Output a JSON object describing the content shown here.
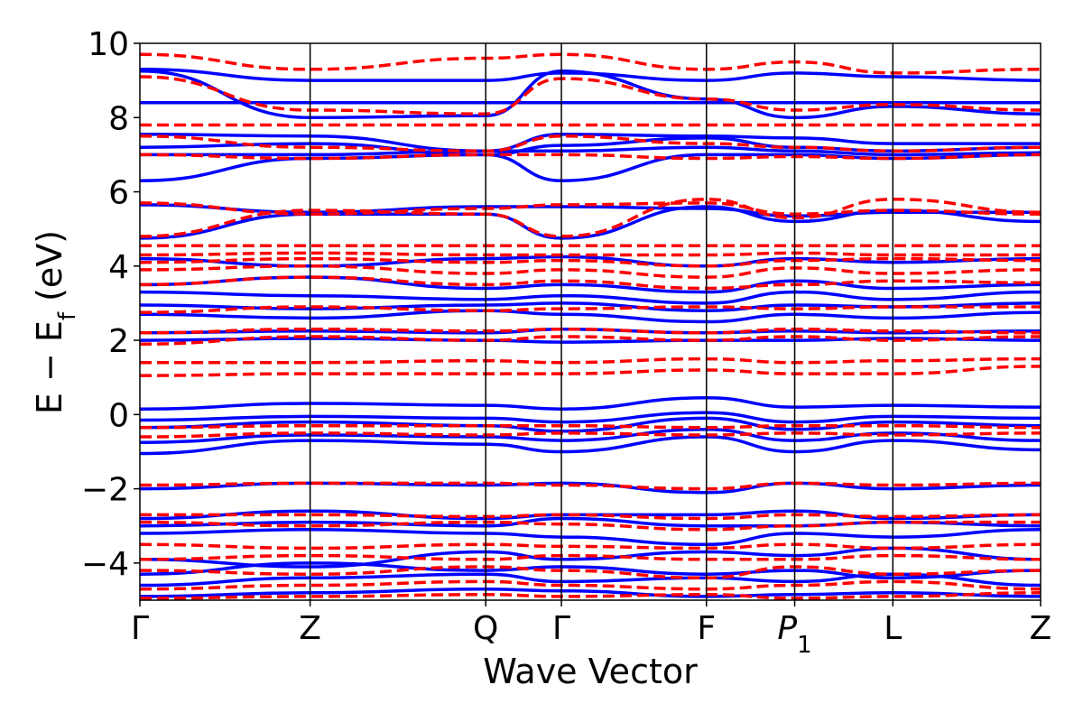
{
  "chart_data": {
    "type": "line",
    "xlabel": "Wave Vector",
    "ylabel_parts": {
      "main": "E − E",
      "subscript": "f",
      "unit": " (eV)"
    },
    "ylim": [
      -5,
      10
    ],
    "yticks": [
      {
        "value": 10,
        "label": "10"
      },
      {
        "value": 8,
        "label": "8"
      },
      {
        "value": 6,
        "label": "6"
      },
      {
        "value": 4,
        "label": "4"
      },
      {
        "value": 2,
        "label": "2"
      },
      {
        "value": 0,
        "label": "0"
      },
      {
        "value": -2,
        "label": "−2"
      },
      {
        "value": -4,
        "label": "−4"
      }
    ],
    "kpath": [
      {
        "label": "Γ",
        "sub": "",
        "italic": false,
        "pos": 0.0
      },
      {
        "label": "Z",
        "sub": "",
        "italic": false,
        "pos": 0.189
      },
      {
        "label": "Q",
        "sub": "",
        "italic": false,
        "pos": 0.384
      },
      {
        "label": "Γ",
        "sub": "",
        "italic": false,
        "pos": 0.468
      },
      {
        "label": "F",
        "sub": "",
        "italic": false,
        "pos": 0.629
      },
      {
        "label": "P",
        "sub": "1",
        "italic": true,
        "pos": 0.727
      },
      {
        "label": "L",
        "sub": "",
        "italic": false,
        "pos": 0.836
      },
      {
        "label": "Z",
        "sub": "",
        "italic": false,
        "pos": 1.0
      }
    ],
    "grid": false,
    "colors": {
      "series_a": "#0000ff",
      "series_b": "#ff0000",
      "kpath_line": "#000000"
    },
    "series": [
      {
        "style": "solid",
        "color": "#0000ff",
        "bands": [
          [
            -4.9,
            -4.8,
            -4.7,
            -4.75,
            -4.9,
            -4.85,
            -4.8,
            -4.9
          ],
          [
            -4.6,
            -4.4,
            -4.3,
            -4.5,
            -4.4,
            -4.5,
            -4.3,
            -4.6
          ],
          [
            -4.3,
            -4.0,
            -4.2,
            -4.1,
            -4.3,
            -4.2,
            -4.4,
            -4.2
          ],
          [
            -3.9,
            -4.1,
            -3.7,
            -3.9,
            -3.7,
            -3.8,
            -3.6,
            -3.9
          ],
          [
            -3.2,
            -3.1,
            -3.2,
            -3.3,
            -3.5,
            -3.2,
            -3.3,
            -3.1
          ],
          [
            -3.0,
            -2.9,
            -3.0,
            -2.8,
            -3.0,
            -3.0,
            -2.9,
            -3.0
          ],
          [
            -2.8,
            -2.6,
            -2.8,
            -2.7,
            -2.7,
            -2.6,
            -2.8,
            -2.7
          ],
          [
            -2.0,
            -1.85,
            -1.9,
            -1.85,
            -2.1,
            -1.85,
            -2.0,
            -1.9
          ],
          [
            -1.05,
            -0.7,
            -0.8,
            -1.0,
            -0.6,
            -1.0,
            -0.7,
            -0.95
          ],
          [
            -0.75,
            -0.55,
            -0.6,
            -0.7,
            -0.4,
            -0.7,
            -0.5,
            -0.7
          ],
          [
            -0.35,
            -0.2,
            -0.3,
            -0.45,
            -0.1,
            -0.4,
            -0.2,
            -0.3
          ],
          [
            -0.15,
            -0.05,
            -0.1,
            -0.2,
            0.05,
            -0.2,
            -0.05,
            -0.1
          ],
          [
            0.15,
            0.3,
            0.25,
            0.15,
            0.45,
            0.2,
            0.25,
            0.2
          ],
          [
            2.0,
            2.05,
            2.0,
            1.95,
            2.0,
            2.0,
            2.05,
            2.0
          ],
          [
            2.2,
            2.25,
            2.2,
            2.3,
            2.2,
            2.25,
            2.2,
            2.25
          ],
          [
            2.7,
            2.6,
            2.8,
            2.7,
            2.5,
            2.7,
            2.6,
            2.75
          ],
          [
            2.95,
            2.85,
            2.95,
            3.0,
            2.8,
            2.95,
            2.9,
            3.0
          ],
          [
            3.3,
            3.2,
            3.1,
            3.2,
            3.0,
            3.3,
            3.1,
            3.3
          ],
          [
            3.5,
            3.7,
            3.4,
            3.5,
            3.3,
            3.6,
            3.4,
            3.5
          ],
          [
            4.2,
            4.0,
            4.2,
            4.25,
            4.0,
            4.2,
            4.1,
            4.2
          ],
          [
            4.75,
            5.4,
            5.4,
            4.75,
            5.6,
            5.2,
            5.5,
            5.2
          ],
          [
            5.65,
            5.45,
            5.6,
            5.6,
            5.55,
            5.35,
            5.45,
            5.45
          ],
          [
            6.3,
            6.9,
            7.0,
            6.3,
            7.0,
            7.0,
            6.9,
            7.0
          ],
          [
            7.0,
            7.0,
            7.1,
            7.1,
            7.2,
            7.1,
            7.0,
            7.05
          ],
          [
            7.2,
            7.3,
            7.0,
            7.25,
            7.45,
            7.2,
            7.1,
            7.2
          ],
          [
            7.55,
            7.5,
            7.1,
            7.55,
            7.5,
            7.45,
            7.3,
            7.3
          ],
          [
            8.4,
            8.4,
            8.4,
            8.4,
            8.4,
            8.4,
            8.4,
            8.4
          ],
          [
            9.25,
            8.0,
            8.05,
            9.25,
            8.5,
            8.0,
            8.3,
            8.1
          ],
          [
            9.3,
            9.0,
            9.0,
            9.2,
            9.0,
            9.2,
            9.1,
            9.0
          ]
        ]
      },
      {
        "style": "dashed",
        "color": "#ff0000",
        "bands": [
          [
            -4.95,
            -4.9,
            -4.85,
            -4.9,
            -4.85,
            -4.95,
            -4.9,
            -4.8
          ],
          [
            -4.7,
            -4.6,
            -4.5,
            -4.6,
            -4.7,
            -4.6,
            -4.5,
            -4.7
          ],
          [
            -4.2,
            -4.3,
            -4.1,
            -4.2,
            -4.4,
            -4.1,
            -4.3,
            -4.2
          ],
          [
            -3.9,
            -3.8,
            -3.9,
            -3.8,
            -3.9,
            -3.9,
            -3.8,
            -3.9
          ],
          [
            -3.5,
            -3.6,
            -3.5,
            -3.55,
            -3.6,
            -3.5,
            -3.6,
            -3.5
          ],
          [
            -2.9,
            -3.0,
            -2.9,
            -2.95,
            -3.1,
            -3.0,
            -2.9,
            -2.9
          ],
          [
            -2.7,
            -2.7,
            -2.75,
            -2.7,
            -2.8,
            -2.7,
            -2.75,
            -2.7
          ],
          [
            -1.9,
            -1.85,
            -1.85,
            -1.9,
            -2.0,
            -1.85,
            -1.9,
            -1.85
          ],
          [
            -0.6,
            -0.5,
            -0.55,
            -0.5,
            -0.55,
            -0.5,
            -0.55,
            -0.5
          ],
          [
            -0.35,
            -0.3,
            -0.3,
            -0.3,
            -0.35,
            -0.3,
            -0.3,
            -0.35
          ],
          [
            1.05,
            1.1,
            1.1,
            1.1,
            1.2,
            1.1,
            1.1,
            1.3
          ],
          [
            1.4,
            1.4,
            1.45,
            1.4,
            1.5,
            1.4,
            1.45,
            1.5
          ],
          [
            1.9,
            2.1,
            2.0,
            2.1,
            2.0,
            2.1,
            2.0,
            2.1
          ],
          [
            2.2,
            2.3,
            2.25,
            2.3,
            2.2,
            2.3,
            2.25,
            2.2
          ],
          [
            2.75,
            2.9,
            2.8,
            2.85,
            2.9,
            2.85,
            2.9,
            2.9
          ],
          [
            3.5,
            3.7,
            3.5,
            3.6,
            3.4,
            3.5,
            3.6,
            3.55
          ],
          [
            3.9,
            4.0,
            3.8,
            3.9,
            3.7,
            3.95,
            3.8,
            3.9
          ],
          [
            4.1,
            4.2,
            4.1,
            4.15,
            4.0,
            4.15,
            4.2,
            4.15
          ],
          [
            4.3,
            4.35,
            4.3,
            4.3,
            4.3,
            4.35,
            4.3,
            4.3
          ],
          [
            4.55,
            4.55,
            4.55,
            4.55,
            4.55,
            4.55,
            4.55,
            4.55
          ],
          [
            4.8,
            5.5,
            5.4,
            4.8,
            5.8,
            5.3,
            5.8,
            5.45
          ],
          [
            5.7,
            5.4,
            5.55,
            5.65,
            5.7,
            5.4,
            5.5,
            5.4
          ],
          [
            7.0,
            6.9,
            7.0,
            7.0,
            6.9,
            6.95,
            6.9,
            7.0
          ],
          [
            7.5,
            7.2,
            7.1,
            7.5,
            7.3,
            7.2,
            7.1,
            7.2
          ],
          [
            7.8,
            7.8,
            7.8,
            7.8,
            7.8,
            7.8,
            7.8,
            7.8
          ],
          [
            9.1,
            8.2,
            8.1,
            9.05,
            8.5,
            8.2,
            8.35,
            8.2
          ],
          [
            9.7,
            9.3,
            9.6,
            9.7,
            9.3,
            9.5,
            9.2,
            9.3
          ]
        ]
      }
    ]
  }
}
